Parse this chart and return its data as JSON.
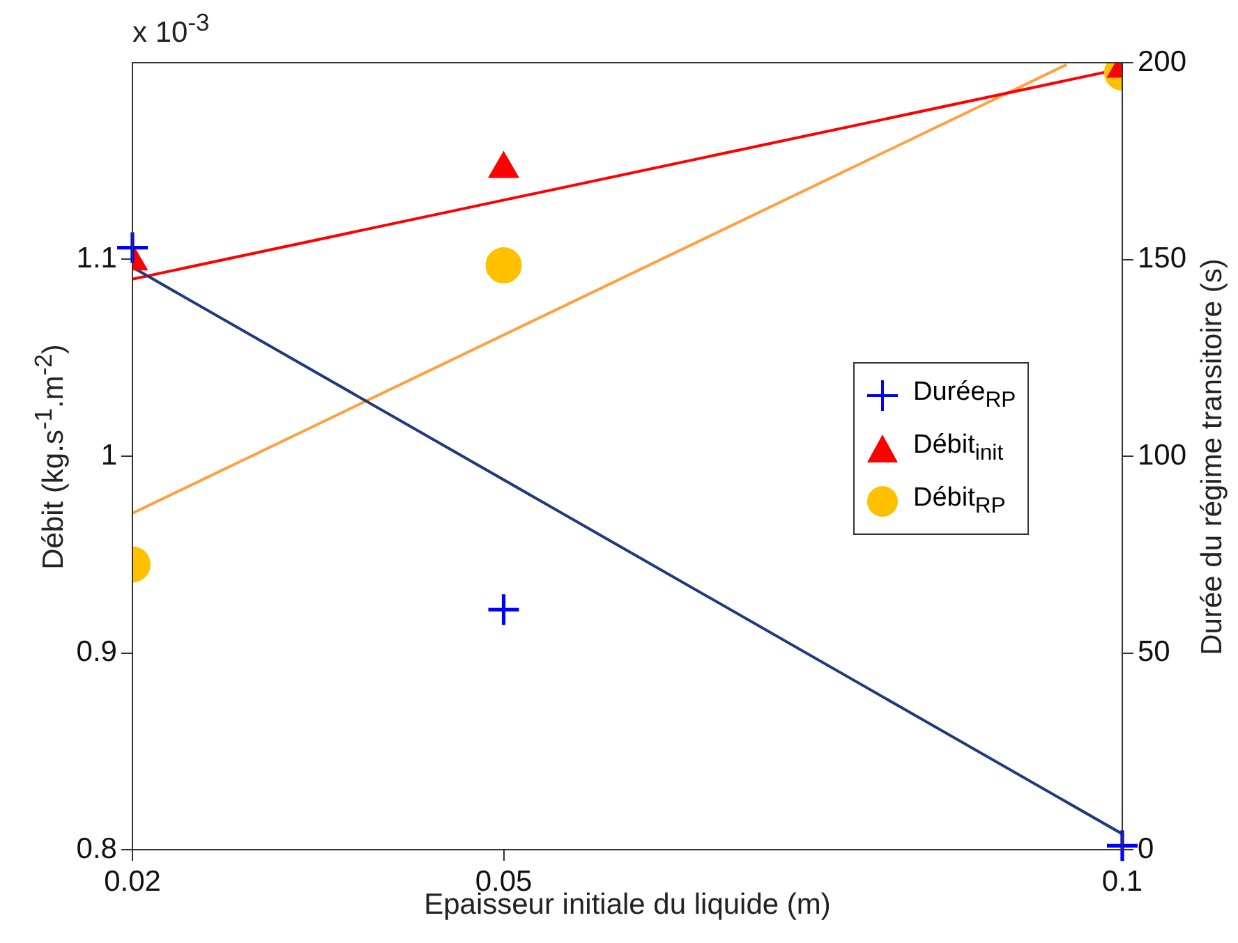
{
  "chart_data": {
    "type": "scatter",
    "xlabel": "Epaisseur initiale du liquide (m)",
    "ylabel": "Débit (kg.s$^{-1}$.m$^{-2}$)",
    "y2label": "Durée du régime transitoire (s)",
    "annotations": [
      "x 10$^{-3}$"
    ],
    "xlim": [
      0.02,
      0.1
    ],
    "xticks": [
      0.02,
      0.05,
      0.1
    ],
    "ylim": [
      0.8,
      1.2
    ],
    "yticks": [
      0.8,
      0.9,
      1,
      1.1
    ],
    "y2lim": [
      0,
      200
    ],
    "y2ticks": [
      0,
      50,
      100,
      150,
      200
    ],
    "grid": false,
    "legend": "right",
    "series": [
      {
        "name": "Durée$_{RP}$",
        "type": "scatter",
        "color": "#0000ff",
        "marker": "cross",
        "axis": "y2",
        "x": [
          0.02,
          0.05,
          0.1
        ],
        "values": [
          153,
          61,
          1
        ]
      },
      {
        "name": "Débit$_{init}$",
        "type": "scatter",
        "color": "#ff0000",
        "marker": "triangle",
        "x": [
          0.02,
          0.05,
          0.1
        ],
        "values": [
          1.099,
          1.146,
          1.197
        ]
      },
      {
        "name": "Débit$_{RP}$",
        "type": "scatter",
        "color": "#ffc000",
        "marker": "circle",
        "x": [
          0.02,
          0.05,
          0.1
        ],
        "values": [
          0.945,
          1.097,
          1.195
        ]
      },
      {
        "type": "line",
        "color": "#1f3a7a",
        "marker": "none",
        "axis": "y2",
        "x": [
          0.02,
          0.1
        ],
        "values": [
          148,
          4
        ]
      },
      {
        "type": "line",
        "color": "#ff0000",
        "marker": "none",
        "x": [
          0.02,
          0.1
        ],
        "values": [
          1.09,
          1.197
        ]
      },
      {
        "type": "line",
        "color": "#ffa040",
        "marker": "none",
        "x": [
          0.02,
          0.0955
        ],
        "values": [
          0.971,
          1.199
        ]
      }
    ]
  }
}
